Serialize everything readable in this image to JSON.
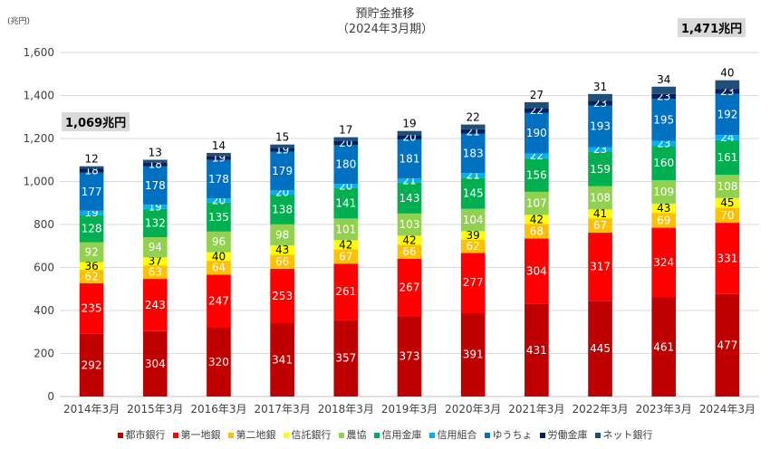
{
  "chart_data": {
    "type": "bar",
    "stacked": true,
    "title": "預貯金推移",
    "subtitle": "（2024年3月期）",
    "unit_label": "(兆円)",
    "annotations": {
      "first_total": "1,069兆円",
      "last_total": "1,471兆円"
    },
    "ylim": [
      0,
      1600
    ],
    "yticks": [
      "0",
      "200",
      "400",
      "600",
      "800",
      "1,000",
      "1,200",
      "1,400",
      "1,600"
    ],
    "grid": true,
    "legend_position": "bottom",
    "categories": [
      "2014年3月",
      "2015年3月",
      "2016年3月",
      "2017年3月",
      "2018年3月",
      "2019年3月",
      "2020年3月",
      "2021年3月",
      "2022年3月",
      "2023年3月",
      "2024年3月"
    ],
    "series": [
      {
        "name": "都市銀行",
        "color": "#c00000",
        "label_color": "#ffffff",
        "values": [
          292,
          304,
          320,
          341,
          357,
          373,
          391,
          431,
          445,
          461,
          477
        ]
      },
      {
        "name": "第一地銀",
        "color": "#ff0000",
        "label_color": "#ffffff",
        "values": [
          235,
          243,
          247,
          253,
          261,
          267,
          277,
          304,
          317,
          324,
          331
        ]
      },
      {
        "name": "第二地銀",
        "color": "#ffc000",
        "label_color": "#ffffff",
        "values": [
          62,
          63,
          64,
          66,
          67,
          66,
          62,
          68,
          67,
          69,
          70
        ]
      },
      {
        "name": "信託銀行",
        "color": "#ffff00",
        "label_color": "#000000",
        "values": [
          36,
          37,
          40,
          43,
          42,
          42,
          39,
          42,
          41,
          43,
          45
        ]
      },
      {
        "name": "農協",
        "color": "#92d050",
        "label_color": "#ffffff",
        "values": [
          92,
          94,
          96,
          98,
          101,
          103,
          104,
          107,
          108,
          109,
          108
        ]
      },
      {
        "name": "信用金庫",
        "color": "#00b050",
        "label_color": "#ffffff",
        "values": [
          128,
          132,
          135,
          138,
          141,
          143,
          145,
          156,
          159,
          160,
          161
        ]
      },
      {
        "name": "信用組合",
        "color": "#00b0f0",
        "label_color": "#ffffff",
        "values": [
          19,
          19,
          20,
          20,
          20,
          21,
          21,
          22,
          23,
          23,
          24
        ]
      },
      {
        "name": "ゆうちょ",
        "color": "#0070c0",
        "label_color": "#ffffff",
        "values": [
          177,
          178,
          178,
          179,
          180,
          181,
          183,
          190,
          193,
          195,
          192
        ]
      },
      {
        "name": "労働金庫",
        "color": "#002060",
        "label_color": "#ffffff",
        "values": [
          18,
          18,
          19,
          19,
          20,
          20,
          21,
          22,
          23,
          23,
          23
        ]
      },
      {
        "name": "ネット銀行",
        "color": "#1f4e79",
        "label_color": "#000000",
        "values": [
          12,
          13,
          14,
          15,
          17,
          19,
          22,
          27,
          31,
          34,
          40
        ]
      }
    ]
  }
}
